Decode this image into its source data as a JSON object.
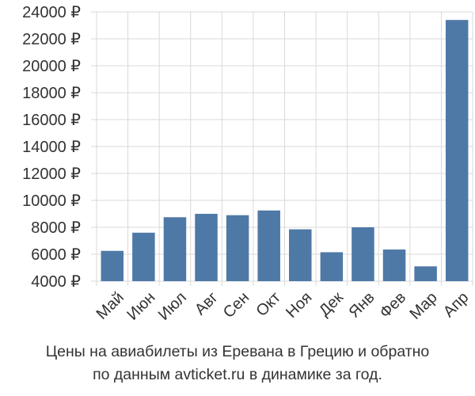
{
  "chart_data": {
    "type": "bar",
    "categories": [
      "Май",
      "Июн",
      "Июл",
      "Авг",
      "Сен",
      "Окт",
      "Ноя",
      "Дек",
      "Янв",
      "Фев",
      "Мар",
      "Апр"
    ],
    "values": [
      6250,
      7600,
      8750,
      9000,
      8900,
      9250,
      7850,
      6150,
      8000,
      6350,
      5100,
      23400
    ],
    "ylim": [
      4000,
      24000
    ],
    "yticks": [
      4000,
      6000,
      8000,
      10000,
      12000,
      14000,
      16000,
      18000,
      20000,
      22000,
      24000
    ],
    "currency_suffix": " ₽",
    "grid": true,
    "bar_color": "#4e79a7",
    "title_lines": [
      "Цены на авиабилеты из Еревана в Грецию и обратно",
      "по данным avticket.ru в динамике за год."
    ]
  }
}
